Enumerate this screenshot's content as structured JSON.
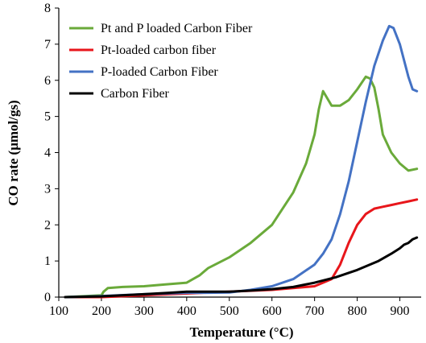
{
  "chart_data": {
    "type": "line",
    "title": "",
    "xlabel": "Temperature (°C)",
    "ylabel": "CO rate (μmol/gs)",
    "xlim": [
      100,
      950
    ],
    "ylim": [
      0,
      8
    ],
    "xticks": [
      100,
      200,
      300,
      400,
      500,
      600,
      700,
      800,
      900
    ],
    "yticks": [
      0,
      1,
      2,
      3,
      4,
      5,
      6,
      7,
      8
    ],
    "grid": false,
    "legend_position": "top-left",
    "series": [
      {
        "name": "Pt and P loaded Carbon Fiber",
        "color": "#6aaa3a",
        "x": [
          115,
          200,
          205,
          215,
          250,
          300,
          350,
          400,
          430,
          450,
          500,
          550,
          600,
          650,
          680,
          700,
          710,
          720,
          730,
          740,
          760,
          780,
          800,
          820,
          830,
          840,
          850,
          860,
          880,
          900,
          920,
          940
        ],
        "y": [
          0.0,
          0.05,
          0.15,
          0.25,
          0.28,
          0.3,
          0.35,
          0.4,
          0.6,
          0.8,
          1.1,
          1.5,
          2.0,
          2.9,
          3.7,
          4.5,
          5.2,
          5.7,
          5.5,
          5.3,
          5.3,
          5.45,
          5.75,
          6.1,
          6.05,
          5.8,
          5.2,
          4.5,
          4.0,
          3.7,
          3.5,
          3.55
        ]
      },
      {
        "name": "Pt-loaded carbon fiber",
        "color": "#e8161b",
        "x": [
          115,
          200,
          300,
          400,
          500,
          600,
          700,
          740,
          760,
          780,
          800,
          820,
          840,
          860,
          880,
          900,
          920,
          940
        ],
        "y": [
          0.0,
          0.0,
          0.05,
          0.1,
          0.15,
          0.2,
          0.3,
          0.5,
          0.9,
          1.5,
          2.0,
          2.3,
          2.45,
          2.5,
          2.55,
          2.6,
          2.65,
          2.7
        ]
      },
      {
        "name": "P-loaded Carbon Fiber",
        "color": "#4472c4",
        "x": [
          115,
          200,
          300,
          400,
          450,
          500,
          550,
          600,
          650,
          700,
          720,
          740,
          760,
          780,
          800,
          820,
          840,
          860,
          875,
          885,
          900,
          920,
          930,
          940
        ],
        "y": [
          0.0,
          0.03,
          0.08,
          0.12,
          0.12,
          0.13,
          0.2,
          0.3,
          0.5,
          0.9,
          1.2,
          1.6,
          2.3,
          3.2,
          4.3,
          5.4,
          6.4,
          7.1,
          7.5,
          7.45,
          7.0,
          6.1,
          5.75,
          5.7
        ]
      },
      {
        "name": "Carbon Fiber",
        "color": "#000000",
        "x": [
          115,
          200,
          300,
          360,
          400,
          450,
          500,
          550,
          600,
          650,
          700,
          750,
          800,
          850,
          880,
          900,
          910,
          920,
          930,
          940
        ],
        "y": [
          0.0,
          0.02,
          0.08,
          0.12,
          0.15,
          0.15,
          0.15,
          0.18,
          0.22,
          0.28,
          0.4,
          0.55,
          0.75,
          1.0,
          1.2,
          1.35,
          1.45,
          1.5,
          1.6,
          1.65
        ]
      }
    ]
  }
}
